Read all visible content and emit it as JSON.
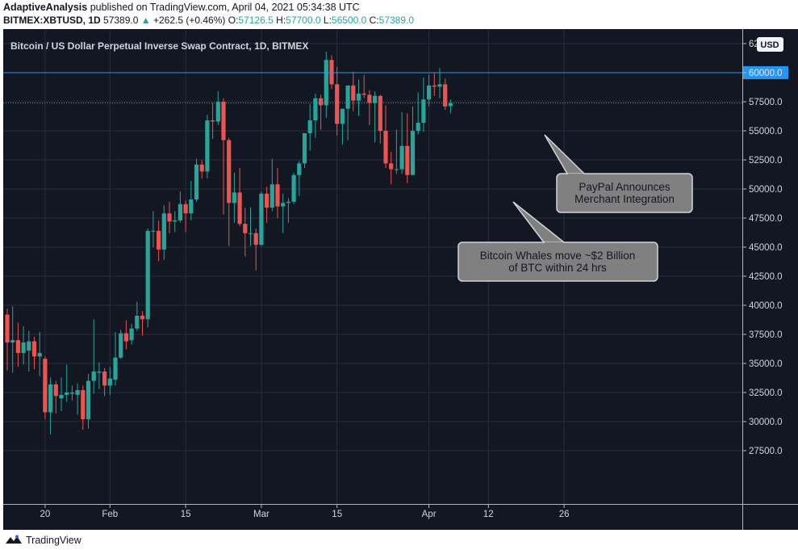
{
  "header": {
    "author": "AdaptiveAnalysis",
    "published_text": "published on TradingView.com, April 04, 2021 05:34:38 UTC",
    "symbol": "BITMEX:XBTUSD, 1D",
    "last": "57389.0",
    "change_arrow": "▲",
    "change": "+262.5 (+0.46%)",
    "o_label": "O:",
    "o_value": "57126.5",
    "h_label": "H:",
    "h_value": "57700.0",
    "l_label": "L:",
    "l_value": "56500.0",
    "c_label": "C:",
    "c_value": "57389.0"
  },
  "footer": {
    "brand": "TradingView"
  },
  "colors": {
    "up": "#26a69a",
    "down": "#ef5350",
    "background": "#131722",
    "grid": "#2a2e39",
    "price_line": "#2196f3"
  },
  "chart_data": {
    "type": "candlestick",
    "title": "Bitcoin / US Dollar Perpetual Inverse Swap Contract, 1D, BITMEX",
    "currency": "USD",
    "ylim": [
      25000,
      65000
    ],
    "y_ticks": [
      "27500.0",
      "30000.0",
      "32500.0",
      "35000.0",
      "37500.0",
      "40000.0",
      "42500.0",
      "45000.0",
      "47500.0",
      "50000.0",
      "52500.0",
      "55000.0",
      "57500.0",
      "60000.0",
      "62500.0"
    ],
    "y_top_tick": "6",
    "x_tick_labels": [
      {
        "label": "20",
        "day": 8
      },
      {
        "label": "Feb",
        "day": 20
      },
      {
        "label": "15",
        "day": 34
      },
      {
        "label": "Mar",
        "day": 48
      },
      {
        "label": "15",
        "day": 62
      },
      {
        "label": "Apr",
        "day": 79
      },
      {
        "label": "12",
        "day": 90
      },
      {
        "label": "26",
        "day": 104
      }
    ],
    "horizontal_line": {
      "value": 60000.0,
      "label": "60000.0"
    },
    "last_price": 57389.0,
    "candles": [
      {
        "d": "Jan 13",
        "o": 39200,
        "h": 39700,
        "l": 34400,
        "c": 36800
      },
      {
        "d": "Jan 14",
        "o": 36800,
        "h": 39900,
        "l": 34200,
        "c": 37000
      },
      {
        "d": "Jan 15",
        "o": 37000,
        "h": 38500,
        "l": 34700,
        "c": 35900
      },
      {
        "d": "Jan 16",
        "o": 35900,
        "h": 38200,
        "l": 34900,
        "c": 36800
      },
      {
        "d": "Jan 17",
        "o": 36100,
        "h": 37800,
        "l": 34300,
        "c": 36900
      },
      {
        "d": "Jan 18",
        "o": 36900,
        "h": 37300,
        "l": 34500,
        "c": 35600
      },
      {
        "d": "Jan 19",
        "o": 35600,
        "h": 37700,
        "l": 33900,
        "c": 35900
      },
      {
        "d": "Jan 20",
        "o": 35400,
        "h": 35600,
        "l": 30200,
        "c": 30800
      },
      {
        "d": "Jan 21",
        "o": 30800,
        "h": 33800,
        "l": 28900,
        "c": 33200
      },
      {
        "d": "Jan 22",
        "o": 33200,
        "h": 33500,
        "l": 30700,
        "c": 32200
      },
      {
        "d": "Jan 23",
        "o": 32000,
        "h": 33800,
        "l": 30900,
        "c": 32300
      },
      {
        "d": "Jan 24",
        "o": 32300,
        "h": 34900,
        "l": 31700,
        "c": 32500
      },
      {
        "d": "Jan 25",
        "o": 32400,
        "h": 33100,
        "l": 31800,
        "c": 32500
      },
      {
        "d": "Jan 26",
        "o": 32300,
        "h": 33300,
        "l": 30600,
        "c": 32700
      },
      {
        "d": "Jan 27",
        "o": 32700,
        "h": 33100,
        "l": 29300,
        "c": 30200
      },
      {
        "d": "Jan 28",
        "o": 30200,
        "h": 34100,
        "l": 29400,
        "c": 33500
      },
      {
        "d": "Jan 29",
        "o": 33500,
        "h": 38800,
        "l": 32400,
        "c": 34300
      },
      {
        "d": "Jan 30",
        "o": 34200,
        "h": 35100,
        "l": 32800,
        "c": 34300
      },
      {
        "d": "Jan 31",
        "o": 34300,
        "h": 34600,
        "l": 32200,
        "c": 33100
      },
      {
        "d": "Feb 01",
        "o": 33100,
        "h": 34700,
        "l": 32300,
        "c": 33700
      },
      {
        "d": "Feb 02",
        "o": 33600,
        "h": 37700,
        "l": 33100,
        "c": 35500
      },
      {
        "d": "Feb 03",
        "o": 35500,
        "h": 37900,
        "l": 35400,
        "c": 37600
      },
      {
        "d": "Feb 04",
        "o": 37600,
        "h": 38700,
        "l": 36200,
        "c": 36900
      },
      {
        "d": "Feb 05",
        "o": 37000,
        "h": 38400,
        "l": 36600,
        "c": 38000
      },
      {
        "d": "Feb 06",
        "o": 38000,
        "h": 40300,
        "l": 37800,
        "c": 39100
      },
      {
        "d": "Feb 07",
        "o": 39100,
        "h": 39500,
        "l": 37400,
        "c": 38800
      },
      {
        "d": "Feb 08",
        "o": 38800,
        "h": 46600,
        "l": 38100,
        "c": 46400
      },
      {
        "d": "Feb 09",
        "o": 46400,
        "h": 48100,
        "l": 45000,
        "c": 46400
      },
      {
        "d": "Feb 10",
        "o": 46400,
        "h": 47300,
        "l": 43800,
        "c": 44800
      },
      {
        "d": "Feb 11",
        "o": 44800,
        "h": 48600,
        "l": 43900,
        "c": 47900
      },
      {
        "d": "Feb 12",
        "o": 47900,
        "h": 48900,
        "l": 46200,
        "c": 47200
      },
      {
        "d": "Feb 13",
        "o": 47200,
        "h": 48100,
        "l": 46300,
        "c": 47300
      },
      {
        "d": "Feb 14",
        "o": 47300,
        "h": 49800,
        "l": 47100,
        "c": 48700
      },
      {
        "d": "Feb 15",
        "o": 48700,
        "h": 49000,
        "l": 46300,
        "c": 47900
      },
      {
        "d": "Feb 16",
        "o": 47900,
        "h": 50700,
        "l": 47300,
        "c": 49100
      },
      {
        "d": "Feb 17",
        "o": 49100,
        "h": 52600,
        "l": 48900,
        "c": 52100
      },
      {
        "d": "Feb 18",
        "o": 52100,
        "h": 52500,
        "l": 50900,
        "c": 51500
      },
      {
        "d": "Feb 19",
        "o": 51500,
        "h": 56400,
        "l": 50900,
        "c": 55900
      },
      {
        "d": "Feb 20",
        "o": 55900,
        "h": 57400,
        "l": 54300,
        "c": 55800
      },
      {
        "d": "Feb 21",
        "o": 55800,
        "h": 58400,
        "l": 55500,
        "c": 57500
      },
      {
        "d": "Feb 22",
        "o": 57500,
        "h": 57800,
        "l": 47800,
        "c": 54200
      },
      {
        "d": "Feb 23",
        "o": 54200,
        "h": 54400,
        "l": 45100,
        "c": 48800
      },
      {
        "d": "Feb 24",
        "o": 48800,
        "h": 51400,
        "l": 47100,
        "c": 49700
      },
      {
        "d": "Feb 25",
        "o": 49700,
        "h": 51800,
        "l": 46800,
        "c": 47000
      },
      {
        "d": "Feb 26",
        "o": 47000,
        "h": 48400,
        "l": 44200,
        "c": 46200
      },
      {
        "d": "Feb 27",
        "o": 46200,
        "h": 48400,
        "l": 45100,
        "c": 46200
      },
      {
        "d": "Feb 28",
        "o": 46200,
        "h": 46600,
        "l": 43000,
        "c": 45200
      },
      {
        "d": "Mar 01",
        "o": 45200,
        "h": 49800,
        "l": 45100,
        "c": 49600
      },
      {
        "d": "Mar 02",
        "o": 49600,
        "h": 50200,
        "l": 47100,
        "c": 48400
      },
      {
        "d": "Mar 03",
        "o": 48400,
        "h": 52600,
        "l": 48100,
        "c": 50400
      },
      {
        "d": "Mar 04",
        "o": 50400,
        "h": 51800,
        "l": 47500,
        "c": 48500
      },
      {
        "d": "Mar 05",
        "o": 48500,
        "h": 49600,
        "l": 46200,
        "c": 48800
      },
      {
        "d": "Mar 06",
        "o": 48800,
        "h": 49200,
        "l": 47100,
        "c": 48900
      },
      {
        "d": "Mar 07",
        "o": 48900,
        "h": 51400,
        "l": 48700,
        "c": 51200
      },
      {
        "d": "Mar 08",
        "o": 51200,
        "h": 52400,
        "l": 49400,
        "c": 52200
      },
      {
        "d": "Mar 09",
        "o": 52200,
        "h": 54700,
        "l": 51800,
        "c": 54800
      },
      {
        "d": "Mar 10",
        "o": 54800,
        "h": 57300,
        "l": 53300,
        "c": 55900
      },
      {
        "d": "Mar 11",
        "o": 55900,
        "h": 58200,
        "l": 54400,
        "c": 57800
      },
      {
        "d": "Mar 12",
        "o": 57800,
        "h": 58100,
        "l": 55100,
        "c": 57200
      },
      {
        "d": "Mar 13",
        "o": 57200,
        "h": 61800,
        "l": 56100,
        "c": 61100
      },
      {
        "d": "Mar 14",
        "o": 61100,
        "h": 61500,
        "l": 58600,
        "c": 59000
      },
      {
        "d": "Mar 15",
        "o": 59000,
        "h": 60500,
        "l": 54600,
        "c": 55600
      },
      {
        "d": "Mar 16",
        "o": 55600,
        "h": 56800,
        "l": 53800,
        "c": 56900
      },
      {
        "d": "Mar 17",
        "o": 56900,
        "h": 58900,
        "l": 54200,
        "c": 58900
      },
      {
        "d": "Mar 18",
        "o": 58900,
        "h": 60100,
        "l": 56700,
        "c": 57600
      },
      {
        "d": "Mar 19",
        "o": 57600,
        "h": 59400,
        "l": 56300,
        "c": 58200
      },
      {
        "d": "Mar 20",
        "o": 58200,
        "h": 59800,
        "l": 57800,
        "c": 58100
      },
      {
        "d": "Mar 21",
        "o": 58100,
        "h": 58500,
        "l": 55500,
        "c": 57400
      },
      {
        "d": "Mar 22",
        "o": 57400,
        "h": 58400,
        "l": 54000,
        "c": 58000
      },
      {
        "d": "Mar 23",
        "o": 58000,
        "h": 58100,
        "l": 53900,
        "c": 55000
      },
      {
        "d": "Mar 24",
        "o": 55000,
        "h": 57200,
        "l": 51800,
        "c": 52200
      },
      {
        "d": "Mar 25",
        "o": 52200,
        "h": 53200,
        "l": 50400,
        "c": 51700
      },
      {
        "d": "Mar 26",
        "o": 51700,
        "h": 55100,
        "l": 51300,
        "c": 51700
      },
      {
        "d": "Mar 27",
        "o": 51700,
        "h": 56600,
        "l": 51300,
        "c": 53700
      },
      {
        "d": "Mar 28",
        "o": 53700,
        "h": 56500,
        "l": 50500,
        "c": 51200
      },
      {
        "d": "Mar 29",
        "o": 51200,
        "h": 57100,
        "l": 51200,
        "c": 55000
      },
      {
        "d": "Mar 30",
        "o": 55000,
        "h": 58300,
        "l": 54700,
        "c": 55700
      },
      {
        "d": "Mar 31",
        "o": 55700,
        "h": 59600,
        "l": 54900,
        "c": 57700
      },
      {
        "d": "Apr 01",
        "o": 57700,
        "h": 59800,
        "l": 57100,
        "c": 58900
      },
      {
        "d": "Apr 02",
        "o": 58900,
        "h": 60000,
        "l": 58000,
        "c": 58800
      },
      {
        "d": "Apr 03",
        "o": 58800,
        "h": 60400,
        "l": 57800,
        "c": 59000
      },
      {
        "d": "Apr 04",
        "o": 59000,
        "h": 59500,
        "l": 56800,
        "c": 57100
      },
      {
        "d": "Apr 05",
        "o": 57126.5,
        "h": 57700,
        "l": 56500,
        "c": 57389
      }
    ],
    "annotations": [
      {
        "lines": [
          "PayPal Announces",
          "Merchant Integration"
        ],
        "points_to": "Mar 31"
      },
      {
        "lines": [
          "Bitcoin Whales move ~$2 Billion",
          "of BTC within 24 hrs"
        ],
        "points_to": "Mar 26"
      }
    ]
  }
}
